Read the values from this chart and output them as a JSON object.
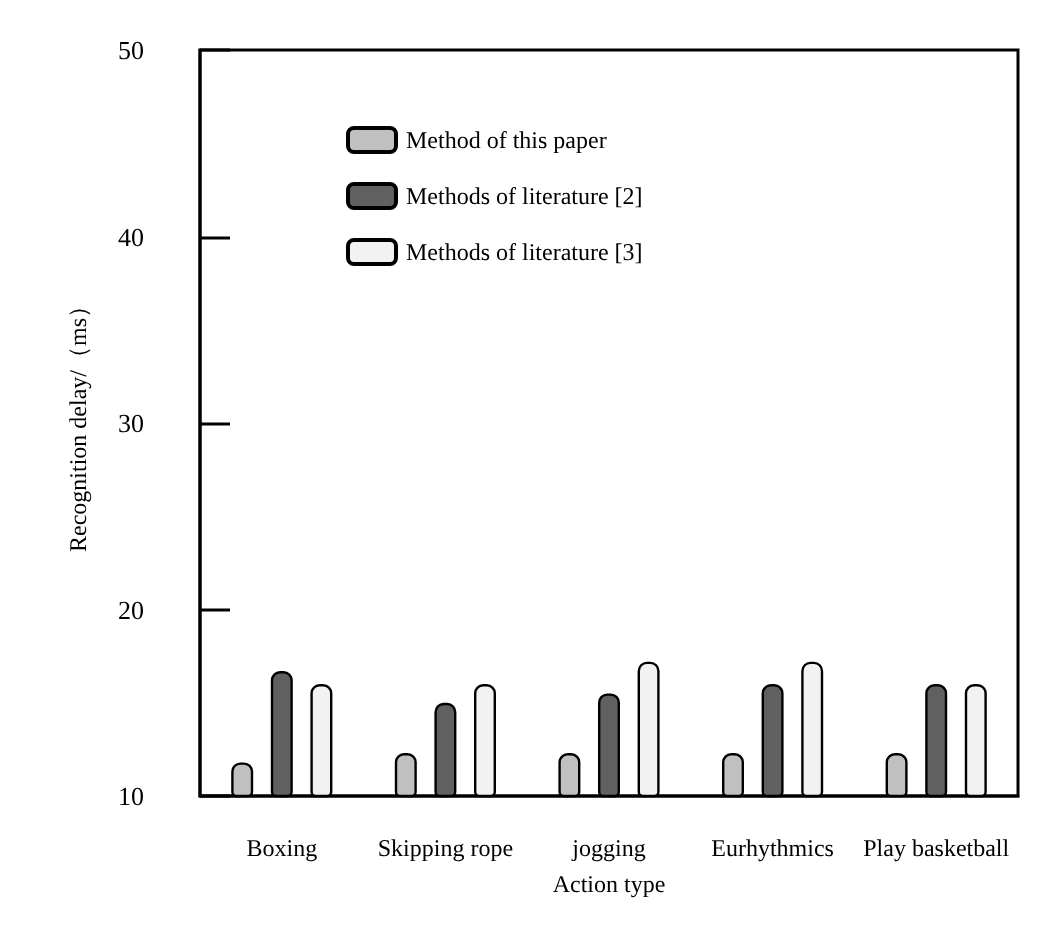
{
  "chart_data": {
    "type": "bar",
    "xlabel": "Action type",
    "ylabel": "Recognition delay/（ms）",
    "categories": [
      "Boxing",
      "Skipping rope",
      "jogging",
      "Eurhythmics",
      "Play basketball"
    ],
    "series": [
      {
        "name": "Method of this paper",
        "color": "#c0c0c0",
        "values": [
          11.8,
          12.3,
          12.3,
          12.3,
          12.3
        ]
      },
      {
        "name": "Methods of literature [2]",
        "color": "#606060",
        "values": [
          16.7,
          15,
          15.5,
          16,
          16
        ]
      },
      {
        "name": "Methods of literature [3]",
        "color": "#f2f2f2",
        "values": [
          16,
          16,
          17.2,
          17.2,
          16
        ]
      }
    ],
    "ylim": [
      10,
      50
    ],
    "yticks": [
      10,
      20,
      30,
      40,
      50
    ],
    "grid": false,
    "legend": "top"
  }
}
